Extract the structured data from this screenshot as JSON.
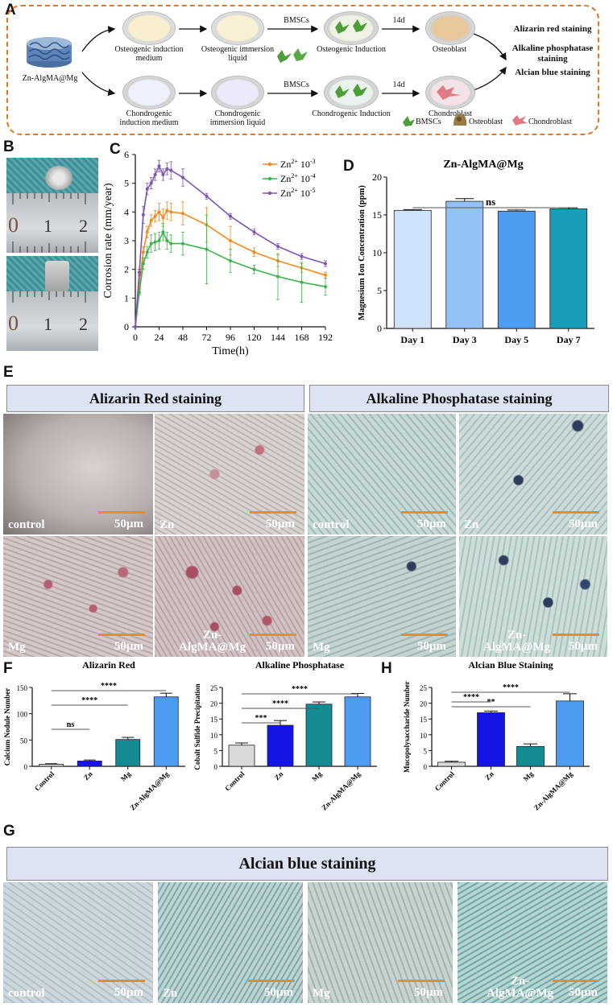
{
  "panel_labels": {
    "a": "A",
    "b": "B",
    "c": "C",
    "d": "D",
    "e": "E",
    "f": "F",
    "g": "G",
    "h": "H"
  },
  "panelA": {
    "scaffold": "Zn-AlgMA@Mg",
    "osteo_medium": "Osteogenic induction medium",
    "osteo_immersion": "Osteogenic immersion liquid",
    "osteo_induction": "Osteogenic Induction",
    "chondro_medium": "Chondrogenic induction medium",
    "chondro_immersion": "Chondrogenic immersion liquid",
    "chondro_induction": "Chondrogenic Induction",
    "bmscs_top": "BMSCs",
    "bmscs_bottom": "BMSCs",
    "days_top": "14d",
    "days_bottom": "14d",
    "osteoblast": "Osteoblast",
    "chondroblast": "Chondroblast",
    "stain1": "Alizarin red staining",
    "stain2": "Alkaline phosphatase staining",
    "stain3": "Alcian blue staining",
    "legend": {
      "bmscs": "BMSCs",
      "osteoblast": "Osteoblast",
      "chondroblast": "Chondroblast"
    },
    "colors": {
      "border": "#e07a22",
      "bmscs": "#4e9c3a",
      "osteoblast": "#9b7b45",
      "chondroblast": "#e07a86"
    }
  },
  "panelB": {
    "ruler_numbers": [
      "0",
      "1",
      "2"
    ]
  },
  "chart_data": [
    {
      "id": "C",
      "type": "line",
      "xlabel": "Time(h)",
      "ylabel": "Corrosion rate (mm/year)",
      "xticks": [
        0,
        24,
        48,
        72,
        96,
        120,
        144,
        168,
        192
      ],
      "yticks": [
        0,
        1,
        2,
        3,
        4,
        5,
        6
      ],
      "xlim": [
        0,
        192
      ],
      "ylim": [
        0,
        6
      ],
      "series": [
        {
          "name": "Zn2+ 10-3",
          "base": "Zn",
          "sup": "2+ 10-3",
          "color": "#f28a1e",
          "x": [
            0,
            4,
            8,
            12,
            16,
            20,
            24,
            28,
            32,
            36,
            48,
            72,
            96,
            120,
            144,
            168,
            192
          ],
          "y": [
            0,
            1.5,
            2.6,
            3.3,
            3.7,
            3.85,
            4.0,
            3.8,
            4.05,
            4.0,
            3.95,
            3.55,
            3.0,
            2.6,
            2.3,
            2.05,
            1.8
          ],
          "err": [
            0,
            0.1,
            0.2,
            0.2,
            0.2,
            0.2,
            0.3,
            0.3,
            0.3,
            0.3,
            0.4,
            0.6,
            0.5,
            0.15,
            0.2,
            0.15,
            0.1
          ]
        },
        {
          "name": "Zn2+ 10-4",
          "base": "Zn",
          "sup": "2+ 10-4",
          "color": "#3cb44b",
          "x": [
            0,
            4,
            8,
            12,
            16,
            20,
            24,
            28,
            32,
            36,
            48,
            72,
            96,
            120,
            144,
            168,
            192
          ],
          "y": [
            0,
            1.2,
            2.2,
            2.6,
            2.9,
            2.95,
            3.0,
            3.3,
            3.0,
            2.9,
            2.9,
            2.7,
            2.3,
            2.0,
            1.75,
            1.55,
            1.4
          ],
          "err": [
            0,
            0.1,
            0.2,
            0.2,
            0.3,
            0.3,
            0.3,
            0.3,
            0.3,
            0.3,
            0.4,
            1.2,
            0.4,
            0.15,
            0.8,
            0.7,
            0.3
          ]
        },
        {
          "name": "Zn2+ 10-5",
          "base": "Zn",
          "sup": "2+ 10-5",
          "color": "#7d55b4",
          "x": [
            0,
            4,
            8,
            12,
            16,
            20,
            24,
            28,
            32,
            36,
            48,
            72,
            96,
            120,
            144,
            168,
            192
          ],
          "y": [
            0,
            1.9,
            3.9,
            4.8,
            5.0,
            5.3,
            5.6,
            5.3,
            5.5,
            5.45,
            5.2,
            4.55,
            3.85,
            3.3,
            2.8,
            2.45,
            2.2
          ],
          "err": [
            0,
            0.1,
            0.3,
            0.2,
            0.2,
            0.2,
            0.2,
            0.2,
            0.2,
            0.3,
            0.3,
            0.1,
            0.1,
            0.1,
            0.1,
            0.1,
            0.1
          ]
        }
      ]
    },
    {
      "id": "D",
      "type": "bar",
      "title": "Zn-AlgMA@Mg",
      "ylabel": "Magnesium Ion Concentration (ppm)",
      "categories": [
        "Day 1",
        "Day 3",
        "Day 5",
        "Day 7"
      ],
      "values": [
        15.6,
        16.8,
        15.5,
        15.8
      ],
      "errors": [
        0.1,
        0.35,
        0.15,
        0.15
      ],
      "colors": [
        "#cfe2fb",
        "#93c1f4",
        "#4d9cf2",
        "#199cb8"
      ],
      "ylim": [
        0,
        20
      ],
      "yticks": [
        0,
        5,
        10,
        15,
        20
      ],
      "sig": [
        {
          "from": 0,
          "to": 3,
          "label": "ns"
        }
      ]
    },
    {
      "id": "F1",
      "type": "bar",
      "title": "Alizarin Red",
      "ylabel": "Calcium Nodule Number",
      "categories": [
        "Control",
        "Zn",
        "Mg",
        "Zn-AlgMA@Mg"
      ],
      "values": [
        4,
        10,
        51,
        132
      ],
      "errors": [
        1,
        2,
        4,
        7
      ],
      "colors": [
        "#d9d9d9",
        "#1414e6",
        "#148a93",
        "#4d9cf2"
      ],
      "ylim": [
        0,
        150
      ],
      "yticks": [
        0,
        50,
        100,
        150
      ],
      "sig": [
        {
          "from": 0,
          "to": 1,
          "label": "ns"
        },
        {
          "from": 0,
          "to": 2,
          "label": "****"
        },
        {
          "from": 0,
          "to": 3,
          "label": "****"
        }
      ]
    },
    {
      "id": "F2",
      "type": "bar",
      "title": "Alkaline Phosphatase",
      "ylabel": "Cobalt Sulfide Precipitation",
      "categories": [
        "Control",
        "Zn",
        "Mg",
        "Zn-AlgMA@Mg"
      ],
      "values": [
        6.7,
        13.0,
        19.7,
        22.0
      ],
      "errors": [
        0.7,
        1.5,
        0.7,
        1.1
      ],
      "colors": [
        "#d9d9d9",
        "#1414e6",
        "#148a93",
        "#4d9cf2"
      ],
      "ylim": [
        0,
        25
      ],
      "yticks": [
        0,
        5,
        10,
        15,
        20,
        25
      ],
      "sig": [
        {
          "from": 0,
          "to": 1,
          "label": "***"
        },
        {
          "from": 0,
          "to": 2,
          "label": "****"
        },
        {
          "from": 0,
          "to": 3,
          "label": "****"
        }
      ]
    },
    {
      "id": "H",
      "type": "bar",
      "title": "Alcian Blue Staining",
      "ylabel": "Mucopolysaccharide Number",
      "categories": [
        "Control",
        "Zn",
        "Mg",
        "Zn-AlgMA@Mg"
      ],
      "values": [
        1.3,
        17.0,
        6.3,
        20.7
      ],
      "errors": [
        0.3,
        0.5,
        0.8,
        2.3
      ],
      "colors": [
        "#d9d9d9",
        "#1414e6",
        "#148a93",
        "#4d9cf2"
      ],
      "ylim": [
        0,
        25
      ],
      "yticks": [
        0,
        5,
        10,
        15,
        20,
        25
      ],
      "sig": [
        {
          "from": 0,
          "to": 1,
          "label": "****"
        },
        {
          "from": 0,
          "to": 2,
          "label": "**"
        },
        {
          "from": 0,
          "to": 3,
          "label": "****"
        }
      ]
    }
  ],
  "panelE": {
    "alizarin_header": "Alizarin Red staining",
    "alp_header": "Alkaline Phosphatase staining",
    "images": [
      {
        "label": "control",
        "scale": "50µm"
      },
      {
        "label": "Zn",
        "scale": "50µm"
      },
      {
        "label": "control",
        "scale": "50µm"
      },
      {
        "label": "Zn",
        "scale": "50µm"
      },
      {
        "label": "Mg",
        "scale": "50µm"
      },
      {
        "label": "Zn-\nAlgMA@Mg",
        "scale": "50µm"
      },
      {
        "label": "Mg",
        "scale": "50µm"
      },
      {
        "label": "Zn-\nAlgMA@Mg",
        "scale": "50µm"
      }
    ]
  },
  "panelG": {
    "header": "Alcian blue staining",
    "images": [
      {
        "label": "control",
        "scale": "50µm"
      },
      {
        "label": "Zn",
        "scale": "50µm"
      },
      {
        "label": "Mg",
        "scale": "50µm"
      },
      {
        "label": "Zn-\nAlgMA@Mg",
        "scale": "50µm"
      }
    ]
  }
}
